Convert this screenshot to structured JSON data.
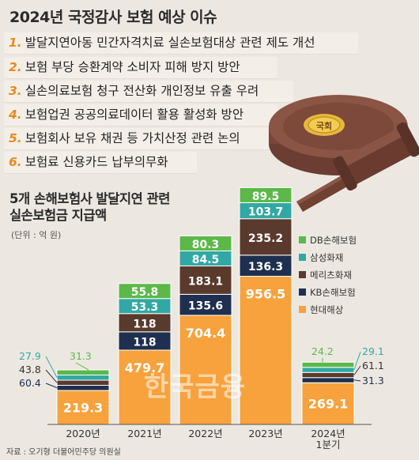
{
  "header": {
    "title": "2024년 국정감사 보험 예상 이슈"
  },
  "issues": [
    {
      "num": "1.",
      "text": "발달지연아동 민간자격치료 실손보험대상 관련 제도 개선"
    },
    {
      "num": "2.",
      "text": "보험 부당 승환계약 소비자 피해 방지 방안"
    },
    {
      "num": "3.",
      "text": "실손의료보험 청구 전산화 개인정보 유출 우려"
    },
    {
      "num": "4.",
      "text": "보험업권 공공의료데이터 활용 활성화 방안"
    },
    {
      "num": "5.",
      "text": "보험회사 보유 채권 등 가치산정 관련 논의"
    },
    {
      "num": "6.",
      "text": "보험료 신용카드 납부의무화"
    }
  ],
  "gavel": {
    "label": "국회",
    "icon": "gavel-icon"
  },
  "chart_data": {
    "type": "bar",
    "stacked": true,
    "title_line1": "5개 손해보험사 발달지연 관련",
    "title_line2": "실손보험금 지급액",
    "unit": "(단위 : 억 원)",
    "categories": [
      "2020년",
      "2021년",
      "2022년",
      "2023년",
      "2024년\n1분기"
    ],
    "series": [
      {
        "name": "현대해상",
        "color": "#f7a23c",
        "values": [
          219.3,
          479.7,
          704.4,
          956.5,
          269.1
        ]
      },
      {
        "name": "KB손해보험",
        "color": "#1e2f4f",
        "values": [
          60.4,
          118,
          135.6,
          136.3,
          31.3
        ]
      },
      {
        "name": "메리츠화재",
        "color": "#5a3a2c",
        "values": [
          43.8,
          118,
          183.1,
          235.2,
          61.1
        ]
      },
      {
        "name": "삼성화재",
        "color": "#32a8a4",
        "values": [
          27.9,
          53.3,
          84.5,
          103.7,
          29.1
        ]
      },
      {
        "name": "DB손해보험",
        "color": "#5cb849",
        "values": [
          31.3,
          55.8,
          80.3,
          89.5,
          24.2
        ]
      }
    ],
    "legend_position": "right",
    "labels": [
      [
        "219.3",
        "60.4",
        "43.8",
        "27.9",
        "31.3"
      ],
      [
        "479.7",
        "118",
        "118",
        "53.3",
        "55.8"
      ],
      [
        "704.4",
        "135.6",
        "183.1",
        "84.5",
        "80.3"
      ],
      [
        "956.5",
        "136.3",
        "235.2",
        "103.7",
        "89.5"
      ],
      [
        "269.1",
        "31.3",
        "61.1",
        "29.1",
        "24.2"
      ]
    ],
    "label_colors": {
      "small_2020": [
        "#1e2f4f",
        "#333333",
        "#32a8a4",
        "#5cb849"
      ],
      "small_2024": [
        "#1e2f4f",
        "#333333",
        "#32a8a4",
        "#5cb849"
      ]
    }
  },
  "legend_order": [
    "DB손해보험",
    "삼성화재",
    "메리츠화재",
    "KB손해보험",
    "현대해상"
  ],
  "source": "자료 : 오기형 더불어민주당 의원실",
  "watermark": "한국금융"
}
